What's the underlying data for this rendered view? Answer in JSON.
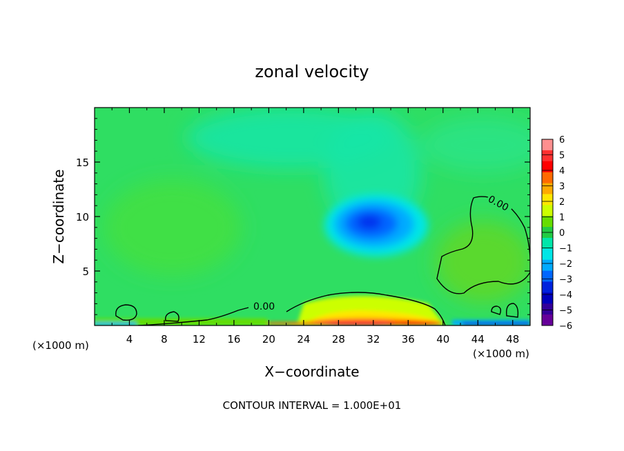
{
  "chart_data": {
    "type": "heatmap",
    "title": "zonal velocity",
    "xlabel": "X−coordinate",
    "ylabel": "Z−coordinate",
    "x_unit": "(×1000 m)",
    "xlim": [
      0,
      50
    ],
    "ylim": [
      0,
      20
    ],
    "xticks": [
      "4",
      "8",
      "12",
      "16",
      "20",
      "24",
      "28",
      "32",
      "36",
      "40",
      "44",
      "48"
    ],
    "yticks": [
      "5",
      "10",
      "15"
    ],
    "footnote": "CONTOUR INTERVAL = 1.000E+01",
    "contour_label": "0.00",
    "colorbar": {
      "ticks": [
        "6",
        "5",
        "4",
        "3",
        "2",
        "1",
        "0",
        "−1",
        "−2",
        "−3",
        "−4",
        "−5",
        "−6"
      ],
      "range": [
        -6,
        6
      ],
      "colors": [
        "#ff8f8f",
        "#ff3030",
        "#ff0000",
        "#ff6a00",
        "#ffaa00",
        "#ffe600",
        "#ccff00",
        "#66dd00",
        "#22cc44",
        "#00e6aa",
        "#00e6e6",
        "#00aaff",
        "#0066ff",
        "#0022dd",
        "#0000bb",
        "#330099",
        "#660099"
      ]
    }
  }
}
